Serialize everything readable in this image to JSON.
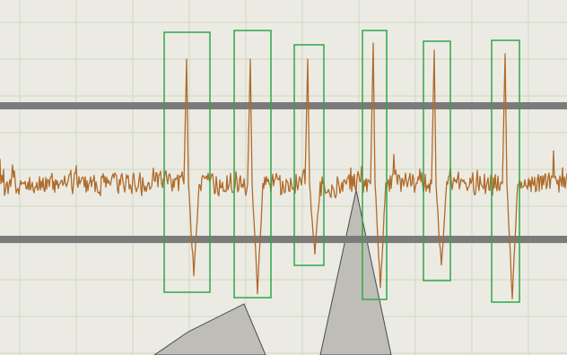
{
  "app": {
    "view": "waveform-spike-detection"
  },
  "colors": {
    "background": "#ebebe3",
    "grid": "#d2d7c0",
    "threshold": "#7b7b7b",
    "trace": "#b06b2b",
    "spike_box": "#2fa84a",
    "gray_shape_fill": "#bebeb7",
    "gray_shape_stroke": "#4a4a4a"
  },
  "trace": {
    "seed": 12345,
    "noise_amplitude": 17,
    "spikes_count": 6
  },
  "spike_boxes_count": 6,
  "thresholds_count": 2,
  "gray_shapes_count": 2
}
